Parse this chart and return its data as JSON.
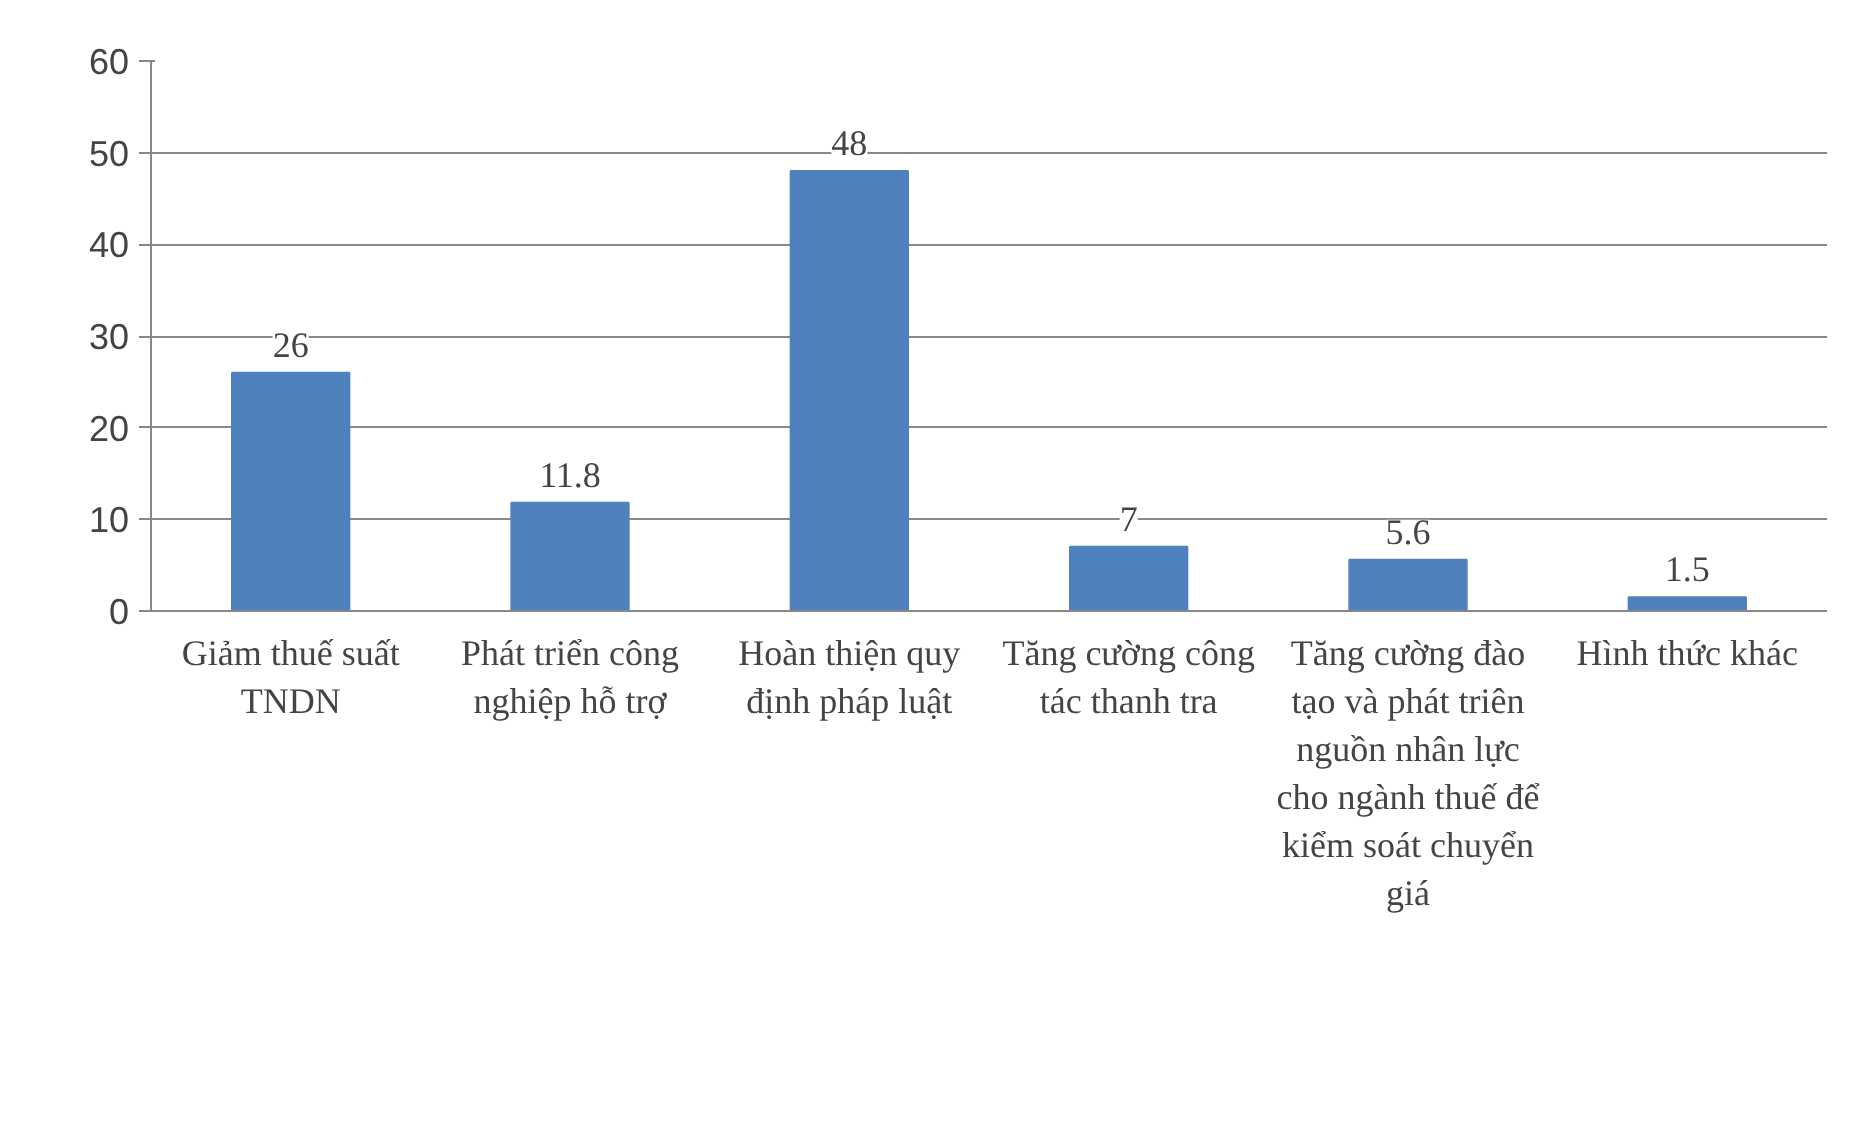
{
  "chart_data": {
    "type": "bar",
    "categories": [
      "Giảm thuế suất TNDN",
      "Phát triển công nghiệp hỗ trợ",
      "Hoàn thiện quy định pháp luật",
      "Tăng cường công tác thanh tra",
      "Tăng cường đào tạo và phát triên nguồn nhân lực cho ngành thuế để kiểm soát chuyển giá",
      "Hình thức khác"
    ],
    "values": [
      26,
      11.8,
      48,
      7,
      5.6,
      1.5
    ],
    "color": "#4f81bd",
    "ylim": [
      0,
      60
    ],
    "yticks": [
      0,
      10,
      20,
      30,
      40,
      50,
      60
    ],
    "grid": "y",
    "data_labels": true
  }
}
